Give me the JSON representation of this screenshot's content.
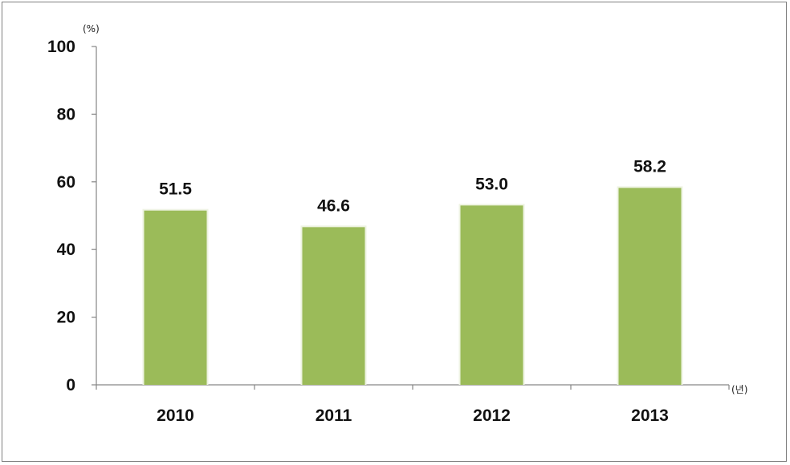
{
  "chart_data": {
    "type": "bar",
    "categories": [
      "2010",
      "2011",
      "2012",
      "2013"
    ],
    "values": [
      51.5,
      46.6,
      53.0,
      58.2
    ],
    "value_labels": [
      "51.5",
      "46.6",
      "53.0",
      "58.2"
    ],
    "title": "",
    "xlabel": "(년)",
    "ylabel": "(%)",
    "ylim": [
      0,
      100
    ],
    "yticks": [
      0,
      20,
      40,
      60,
      80,
      100
    ],
    "grid": false,
    "legend": "none",
    "bar_color": "#9bbb59",
    "axis_color": "#868686"
  }
}
